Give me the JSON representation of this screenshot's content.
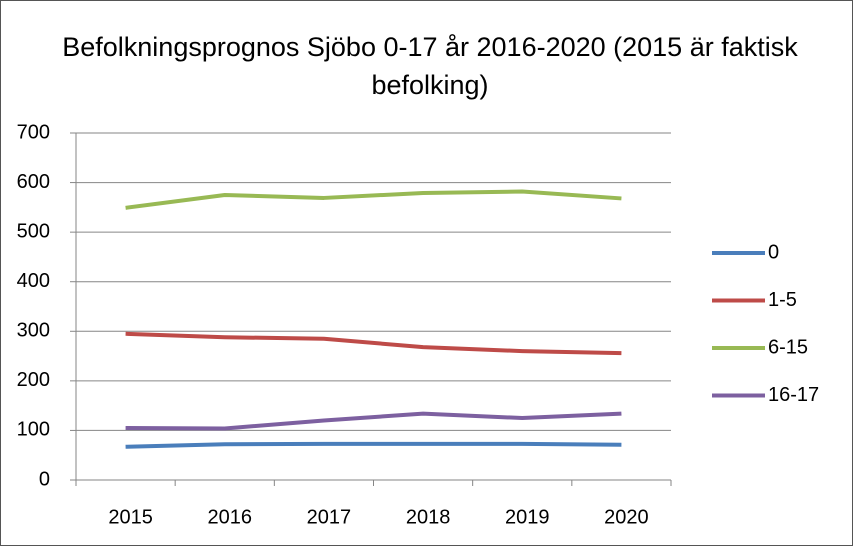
{
  "chart_data": {
    "type": "line",
    "title": "Befolkningsprognos Sjöbo 0-17 år 2016-2020 (2015 är faktisk befolking)",
    "categories": [
      "2015",
      "2016",
      "2017",
      "2018",
      "2019",
      "2020"
    ],
    "series": [
      {
        "name": "0",
        "color": "#4a7ebb",
        "values": [
          67,
          72,
          73,
          73,
          73,
          71
        ]
      },
      {
        "name": "1-5",
        "color": "#be4b48",
        "values": [
          295,
          288,
          285,
          268,
          260,
          256
        ]
      },
      {
        "name": "6-15",
        "color": "#98b954",
        "values": [
          549,
          575,
          569,
          579,
          582,
          568
        ]
      },
      {
        "name": "16-17",
        "color": "#7d60a0",
        "values": [
          105,
          104,
          120,
          134,
          125,
          134
        ]
      }
    ],
    "ylim": [
      0,
      700
    ],
    "yticks": [
      0,
      100,
      200,
      300,
      400,
      500,
      600,
      700
    ],
    "grid": true,
    "legend": "right"
  }
}
